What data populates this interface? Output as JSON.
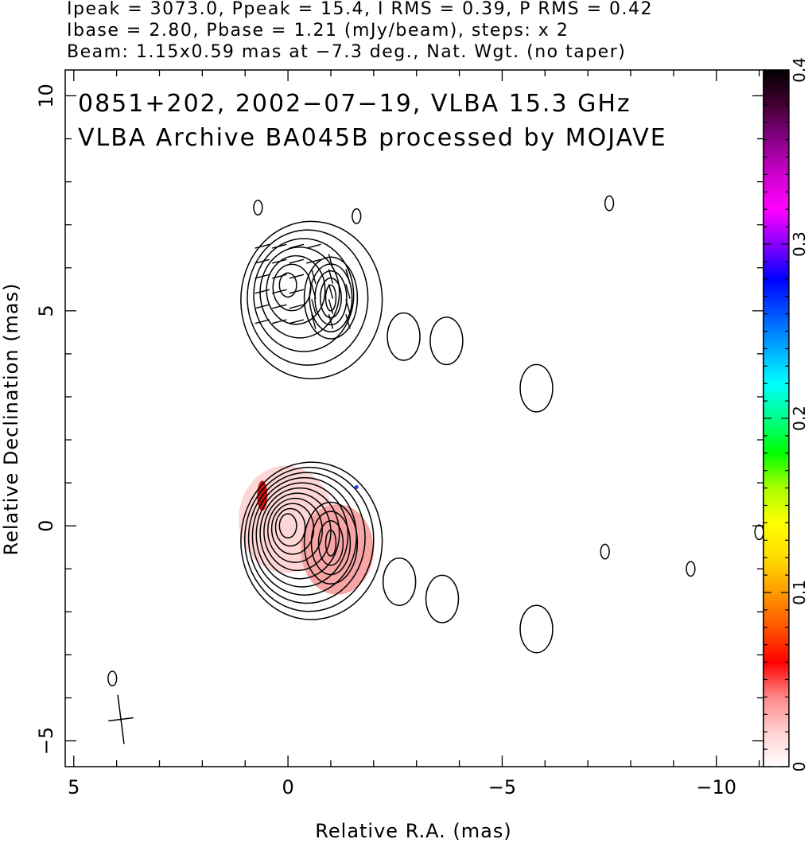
{
  "header": {
    "line1": "Ipeak = 3073.0, Ppeak = 15.4, I RMS = 0.39, P RMS = 0.42",
    "line2": "Ibase = 2.80, Pbase = 1.21 (mJy/beam), steps: x 2",
    "line3": "Beam: 1.15x0.59 mas at −7.3 deg., Nat. Wgt. (no taper)"
  },
  "chart_data": [
    {
      "type": "contour",
      "annotation_line1": "0851+202, 2002−07−19, VLBA 15.3 GHz",
      "annotation_line2": "VLBA Archive BA045B processed by MOJAVE",
      "xlabel": "Relative R.A. (mas)",
      "ylabel": "Relative Declination (mas)",
      "xlim": [
        5.2,
        -11.1
      ],
      "ylim": [
        -5.6,
        10.6
      ],
      "x_ticks": [
        5,
        0,
        -5,
        -10
      ],
      "x_tick_labels": [
        "5",
        "0",
        "−5",
        "−10"
      ],
      "y_ticks": [
        -5,
        0,
        5,
        10
      ],
      "y_tick_labels": [
        "−5",
        "0",
        "5",
        "10"
      ],
      "grid": false,
      "panels": [
        {
          "name": "total intensity with polarization vectors",
          "y_offset": 5.6,
          "peaks": [
            {
              "x": 0.0,
              "y": 0.0,
              "contours": 7
            },
            {
              "x": -1.0,
              "y": -0.3,
              "contours": 5
            }
          ],
          "jet_knots": [
            {
              "x": -2.7,
              "y": -1.2
            },
            {
              "x": -3.7,
              "y": -1.3
            },
            {
              "x": -5.8,
              "y": -2.4
            }
          ],
          "small_features": [
            {
              "x": -7.5,
              "y": 1.9
            },
            {
              "x": 0.7,
              "y": 1.8
            },
            {
              "x": -1.6,
              "y": 1.6
            }
          ]
        },
        {
          "name": "total intensity with fractional polarization colour",
          "y_offset": 0.0,
          "peaks": [
            {
              "x": 0.0,
              "y": 0.0,
              "contours": 11
            },
            {
              "x": -1.0,
              "y": -0.4,
              "contours": 4
            }
          ],
          "jet_knots": [
            {
              "x": -2.6,
              "y": -1.3
            },
            {
              "x": -3.6,
              "y": -1.7
            },
            {
              "x": -5.8,
              "y": -2.4
            }
          ],
          "small_features": [
            {
              "x": -7.4,
              "y": -0.6
            },
            {
              "x": -9.4,
              "y": -1.0
            },
            {
              "x": -11.0,
              "y": -0.15
            },
            {
              "x": 4.1,
              "y": -3.55
            }
          ],
          "beam": {
            "x": 3.9,
            "y": -4.5,
            "major": 1.15,
            "minor": 0.59,
            "pa_deg": -7.3
          }
        }
      ],
      "colorbar": {
        "range": [
          0,
          0.4
        ],
        "tick_labels": [
          "0",
          "0.1",
          "0.2",
          "0.3",
          "0.4"
        ],
        "colors": [
          "#ffffff",
          "#ffd0d0",
          "#ff8888",
          "#ff0000",
          "#ff5500",
          "#ff9900",
          "#ffdd00",
          "#ffff00",
          "#aaff00",
          "#00ff00",
          "#00ff88",
          "#00ffff",
          "#00aaff",
          "#0055ff",
          "#0000ff",
          "#8800ff",
          "#ff00ff",
          "#cc00cc",
          "#880088",
          "#440033",
          "#000000"
        ]
      }
    }
  ]
}
